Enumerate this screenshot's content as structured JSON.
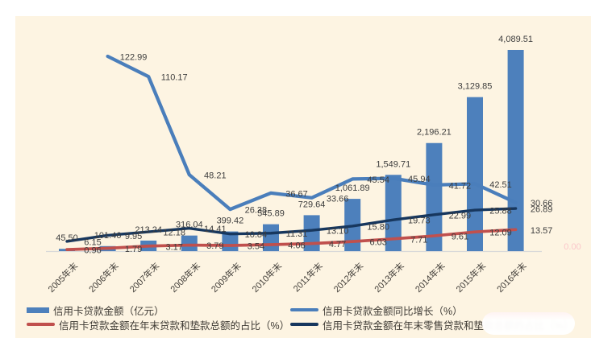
{
  "chart_data": {
    "type": "bar+line combo",
    "categories": [
      "2005年末",
      "2006年末",
      "2007年末",
      "2008年末",
      "2009年末",
      "2010年末",
      "2011年末",
      "2012年末",
      "2013年末",
      "2014年末",
      "2015年末",
      "2016年末"
    ],
    "series": [
      {
        "name": "信用卡贷款金额（亿元）",
        "type": "bar",
        "axis": "amount",
        "color": "#4d80bc",
        "values": [
          45.5,
          101.46,
          213.24,
          316.04,
          399.42,
          545.89,
          729.64,
          1061.89,
          1549.71,
          2196.21,
          3129.85,
          4089.51
        ],
        "labels": [
          "45.50",
          "101.46",
          "213.24",
          "316.04",
          "399.42",
          "545.89",
          "729.64",
          "1,061.89",
          "1,549.71",
          "2,196.21",
          "3,129.85",
          "4,089.51"
        ]
      },
      {
        "name": "信用卡贷款金额同比增长（%）",
        "type": "line",
        "axis": "percent",
        "color": "#4a7ebb",
        "values": [
          null,
          122.99,
          110.17,
          48.21,
          26.38,
          36.67,
          33.66,
          45.54,
          45.94,
          41.72,
          42.51,
          30.66
        ],
        "labels": [
          null,
          "122.99",
          "110.17",
          "48.21",
          "26.38",
          "36.67",
          "33.66",
          "45.54",
          "45.94",
          "41.72",
          "42.51",
          "30.66"
        ]
      },
      {
        "name": "信用卡贷款金额在年末贷款和垫款总额的占比（%）",
        "type": "line",
        "axis": "percent",
        "color": "#c0504d",
        "values": [
          0.96,
          1.79,
          3.17,
          3.79,
          3.54,
          4.06,
          4.77,
          6.03,
          7.71,
          9.61,
          12.09,
          13.57
        ],
        "labels": [
          "0.96",
          "1.79",
          "3.17",
          "3.79",
          "3.54",
          "4.06",
          "4.77",
          "6.03",
          "7.71",
          "9.61",
          "12.09",
          "13.57"
        ]
      },
      {
        "name": "信用卡贷款金额在年末零售贷款和垫款总额的占比（%）",
        "type": "line",
        "axis": "percent",
        "color": "#17375e",
        "values": [
          6.15,
          9.95,
          12.18,
          14.41,
          10.84,
          11.31,
          13.1,
          15.8,
          19.73,
          22.99,
          25.88,
          26.89
        ],
        "labels": [
          "6.15",
          "9.95",
          "12.18",
          "14.41",
          "10.84",
          "11.31",
          "13.10",
          "15.80",
          "19.73",
          "22.99",
          "25.88",
          "26.89"
        ]
      }
    ],
    "title": "",
    "xlabel": "",
    "ylabel": "",
    "amount_axis_range": [
      0,
      4089.51
    ],
    "percent_axis_range": [
      0,
      127
    ],
    "grid": false,
    "axis_tick_labels_hidden": true,
    "legend_position": "bottom"
  },
  "colors": {
    "chart_background": "#fdf4e2",
    "page_background": "#ffffff",
    "axis_line": "#d9d9d9",
    "data_label_text": "#3d3d3d"
  },
  "watermark": {
    "axis_label": "0.00"
  }
}
